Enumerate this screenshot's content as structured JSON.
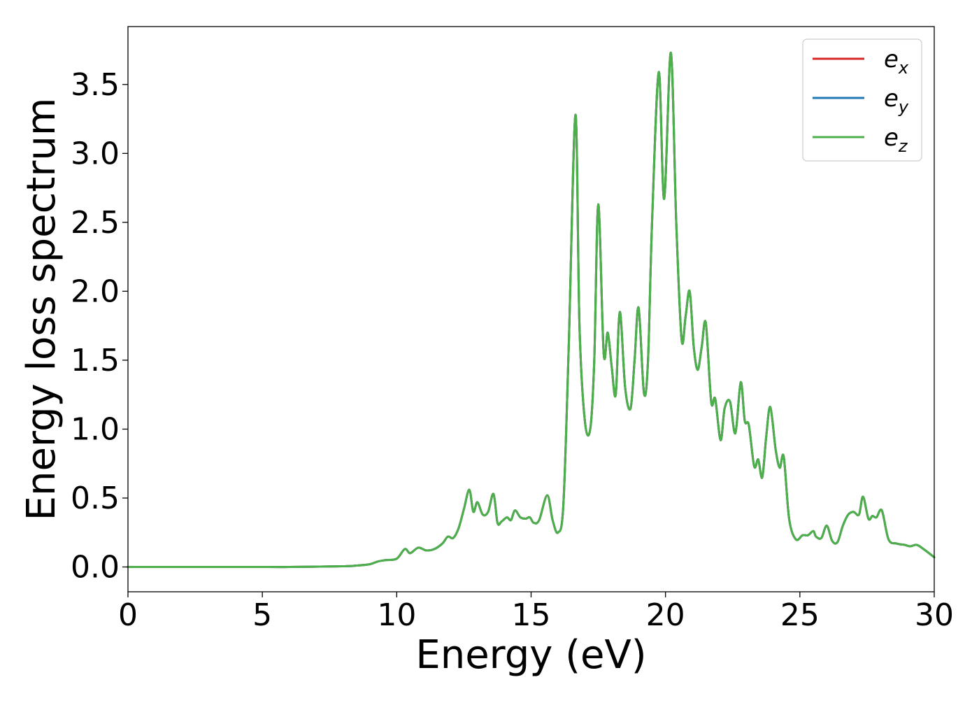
{
  "chart_data": {
    "type": "line",
    "title": "",
    "xlabel": "Energy (eV)",
    "ylabel": "Energy loss spectrum",
    "xlim": [
      0,
      30
    ],
    "ylim": [
      -0.18,
      3.92
    ],
    "xticks": [
      0,
      5,
      10,
      15,
      20,
      25,
      30
    ],
    "xtick_labels": [
      "0",
      "5",
      "10",
      "15",
      "20",
      "25",
      "30"
    ],
    "yticks": [
      0.0,
      0.5,
      1.0,
      1.5,
      2.0,
      2.5,
      3.0,
      3.5
    ],
    "ytick_labels": [
      "0.0",
      "0.5",
      "1.0",
      "1.5",
      "2.0",
      "2.5",
      "3.0",
      "3.5"
    ],
    "grid": false,
    "legend_position": "top-right",
    "series": [
      {
        "name": "e_x",
        "legend_base": "e",
        "legend_sub": "x",
        "color": "#d62728",
        "data_ref": "shared"
      },
      {
        "name": "e_y",
        "legend_base": "e",
        "legend_sub": "y",
        "color": "#1f77b4",
        "data_ref": "shared"
      },
      {
        "name": "e_z",
        "legend_base": "e",
        "legend_sub": "z",
        "color": "#4daf4a",
        "data_ref": "shared"
      }
    ],
    "x": [
      0,
      2,
      4,
      6,
      8,
      8.5,
      9.0,
      9.3,
      9.6,
      10.0,
      10.3,
      10.5,
      10.8,
      11.1,
      11.4,
      11.7,
      11.9,
      12.1,
      12.3,
      12.5,
      12.7,
      12.85,
      13.0,
      13.2,
      13.4,
      13.6,
      13.75,
      13.9,
      14.1,
      14.25,
      14.4,
      14.6,
      14.8,
      14.95,
      15.1,
      15.3,
      15.6,
      15.8,
      16.0,
      16.2,
      16.4,
      16.65,
      16.8,
      17.0,
      17.2,
      17.35,
      17.5,
      17.7,
      17.85,
      18.0,
      18.15,
      18.3,
      18.5,
      18.7,
      18.85,
      19.0,
      19.2,
      19.35,
      19.5,
      19.75,
      19.95,
      20.2,
      20.4,
      20.6,
      20.75,
      20.9,
      21.05,
      21.2,
      21.35,
      21.5,
      21.7,
      21.85,
      22.05,
      22.2,
      22.4,
      22.6,
      22.8,
      22.95,
      23.1,
      23.3,
      23.45,
      23.6,
      23.75,
      23.9,
      24.1,
      24.25,
      24.4,
      24.6,
      24.85,
      25.1,
      25.3,
      25.5,
      25.6,
      25.8,
      26.0,
      26.2,
      26.4,
      26.6,
      26.8,
      27.0,
      27.2,
      27.35,
      27.55,
      27.7,
      27.85,
      28.05,
      28.3,
      28.6,
      28.9,
      29.1,
      29.35,
      29.6,
      30.0
    ],
    "values": [
      0.0,
      0.0,
      0.0,
      0.0,
      0.005,
      0.01,
      0.02,
      0.04,
      0.05,
      0.06,
      0.13,
      0.1,
      0.14,
      0.12,
      0.13,
      0.17,
      0.22,
      0.21,
      0.28,
      0.42,
      0.56,
      0.4,
      0.47,
      0.38,
      0.4,
      0.53,
      0.32,
      0.33,
      0.36,
      0.34,
      0.41,
      0.36,
      0.35,
      0.36,
      0.32,
      0.34,
      0.52,
      0.34,
      0.25,
      0.45,
      1.6,
      3.28,
      1.75,
      1.06,
      1.0,
      1.5,
      2.63,
      1.55,
      1.7,
      1.45,
      1.25,
      1.85,
      1.3,
      1.15,
      1.5,
      1.88,
      1.26,
      1.5,
      2.5,
      3.59,
      2.67,
      3.73,
      2.5,
      1.65,
      1.82,
      2.0,
      1.6,
      1.43,
      1.6,
      1.77,
      1.2,
      1.22,
      0.92,
      1.15,
      1.2,
      0.97,
      1.34,
      1.06,
      1.03,
      0.73,
      0.78,
      0.65,
      0.95,
      1.16,
      0.85,
      0.72,
      0.8,
      0.35,
      0.2,
      0.23,
      0.23,
      0.26,
      0.22,
      0.21,
      0.3,
      0.19,
      0.18,
      0.3,
      0.38,
      0.4,
      0.38,
      0.51,
      0.35,
      0.37,
      0.36,
      0.41,
      0.2,
      0.17,
      0.16,
      0.15,
      0.16,
      0.13,
      0.07
    ]
  }
}
